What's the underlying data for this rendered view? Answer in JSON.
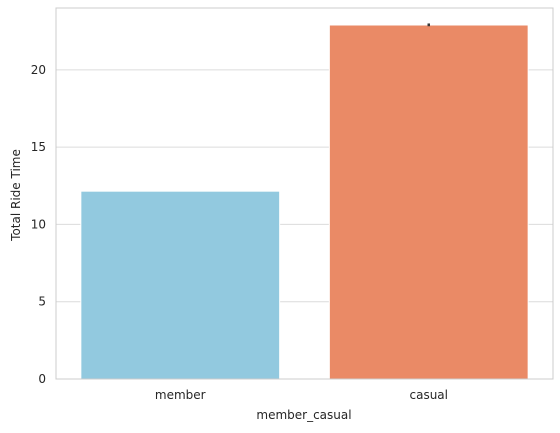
{
  "chart_data": {
    "type": "bar",
    "title": "",
    "xlabel": "member_casual",
    "ylabel": "Total Ride Time",
    "categories": [
      "member",
      "casual"
    ],
    "values": [
      12.15,
      22.9
    ],
    "error_bars": [
      null,
      [
        22.82,
        23.0
      ]
    ],
    "ylim": [
      0,
      24
    ],
    "yticks": [
      0,
      5,
      10,
      15,
      20
    ],
    "ytick_labels": [
      "0",
      "5",
      "10",
      "15",
      "20"
    ],
    "grid": "horizontal",
    "colors": [
      "#92c9df",
      "#ea8a66"
    ],
    "errorbar_color": "#3a3a3a",
    "style": "seaborn whitegrid"
  }
}
